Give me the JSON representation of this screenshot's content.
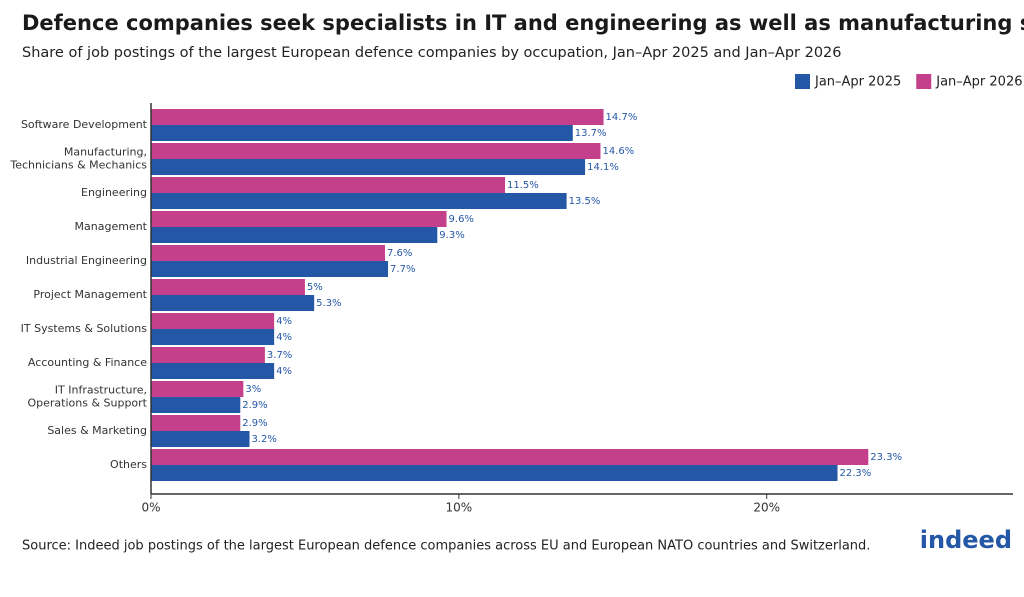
{
  "chart_data": {
    "type": "hbar",
    "title": "Defence companies seek specialists in IT and engineering as well as manufacturing staff",
    "subtitle": "Share of job postings of the largest European defence companies by occupation, Jan–Apr 2025 and Jan–Apr 2026",
    "source": "Source: Indeed job postings of the largest European defence companies across EU and European NATO countries and Switzerland.",
    "logo": "indeed",
    "categories": [
      "Software Development",
      "Manufacturing,\nTechnicians & Mechanics",
      "Engineering",
      "Management",
      "Industrial Engineering",
      "Project Management",
      "IT Systems & Solutions",
      "Accounting & Finance",
      "IT Infrastructure,\nOperations & Support",
      "Sales & Marketing",
      "Others"
    ],
    "series": [
      {
        "name": "Jan–Apr 2025",
        "color": "#2557a7",
        "values": [
          13.7,
          14.1,
          13.5,
          9.3,
          7.7,
          5.3,
          4,
          4,
          2.9,
          3.2,
          22.3
        ],
        "value_labels": [
          "13.7%",
          "14.1%",
          "13.5%",
          "9.3%",
          "7.7%",
          "5.3%",
          "4%",
          "4%",
          "2.9%",
          "3.2%",
          "22.3%"
        ]
      },
      {
        "name": "Jan–Apr 2026",
        "color": "#c5408a",
        "values": [
          14.7,
          14.6,
          11.5,
          9.6,
          7.6,
          5,
          4,
          3.7,
          3,
          2.9,
          23.3
        ],
        "value_labels": [
          "14.7%",
          "14.6%",
          "11.5%",
          "9.6%",
          "7.6%",
          "5%",
          "4%",
          "3.7%",
          "3%",
          "2.9%",
          "23.3%"
        ]
      }
    ],
    "xlim": [
      0,
      28
    ],
    "xticks": [
      {
        "value": 0,
        "label": "0%"
      },
      {
        "value": 10,
        "label": "10%"
      },
      {
        "value": 20,
        "label": "20%"
      }
    ],
    "legend": "top-right"
  }
}
